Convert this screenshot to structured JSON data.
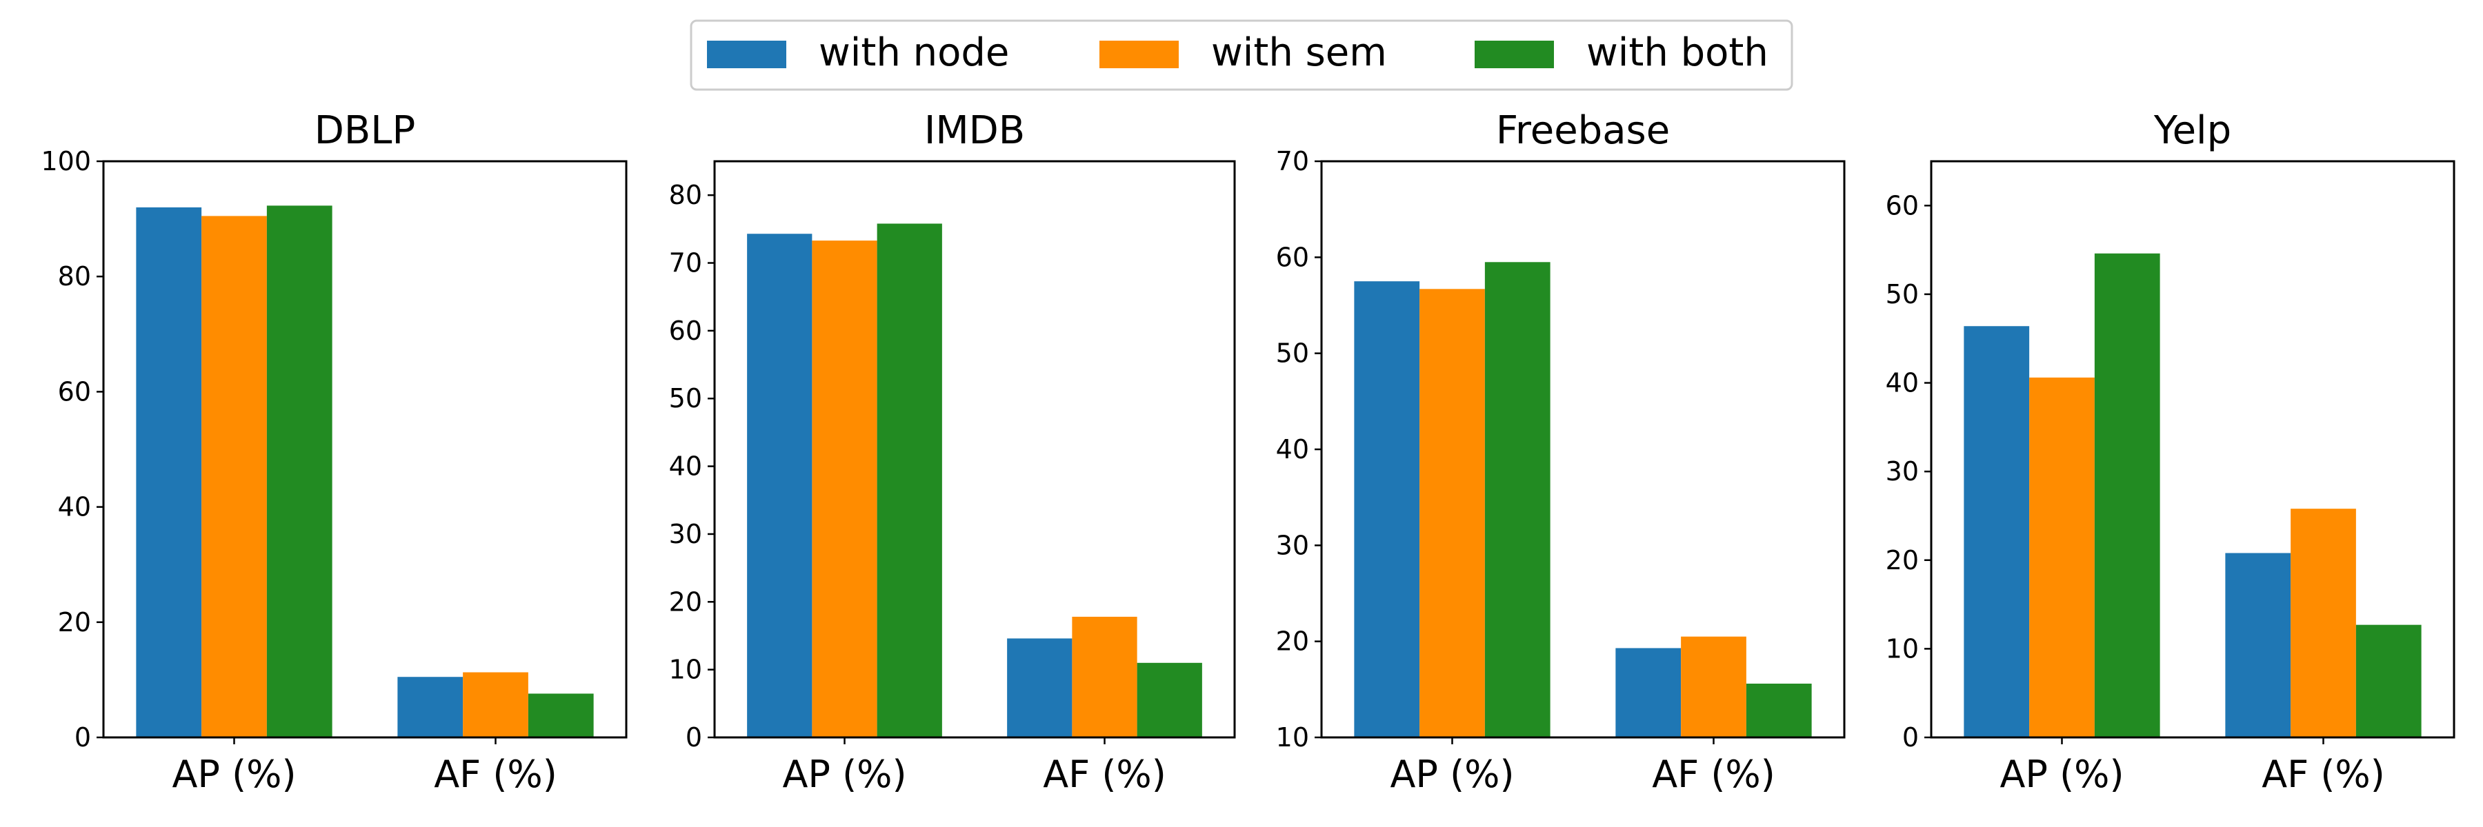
{
  "legend": {
    "entries": [
      {
        "name": "with node",
        "color": "#1f77b4"
      },
      {
        "name": "with sem",
        "color": "#ff8c00"
      },
      {
        "name": "with both",
        "color": "#228b22"
      }
    ]
  },
  "chart_data": [
    {
      "type": "bar",
      "title": "DBLP",
      "categories": [
        "AP (%)",
        "AF (%)"
      ],
      "ylim": [
        0,
        100
      ],
      "yticks": [
        0,
        20,
        40,
        60,
        80,
        100
      ],
      "series": [
        {
          "name": "with node",
          "values": [
            92.0,
            10.5
          ]
        },
        {
          "name": "with sem",
          "values": [
            90.5,
            11.3
          ]
        },
        {
          "name": "with both",
          "values": [
            92.3,
            7.6
          ]
        }
      ]
    },
    {
      "type": "bar",
      "title": "IMDB",
      "categories": [
        "AP (%)",
        "AF (%)"
      ],
      "ylim": [
        0,
        85
      ],
      "yticks": [
        0,
        10,
        20,
        30,
        40,
        50,
        60,
        70,
        80
      ],
      "series": [
        {
          "name": "with node",
          "values": [
            74.3,
            14.6
          ]
        },
        {
          "name": "with sem",
          "values": [
            73.3,
            17.8
          ]
        },
        {
          "name": "with both",
          "values": [
            75.8,
            11.0
          ]
        }
      ]
    },
    {
      "type": "bar",
      "title": "Freebase",
      "categories": [
        "AP (%)",
        "AF (%)"
      ],
      "ylim": [
        10,
        70
      ],
      "yticks": [
        10,
        20,
        30,
        40,
        50,
        60,
        70
      ],
      "series": [
        {
          "name": "with node",
          "values": [
            57.5,
            19.3
          ]
        },
        {
          "name": "with sem",
          "values": [
            56.7,
            20.5
          ]
        },
        {
          "name": "with both",
          "values": [
            59.5,
            15.6
          ]
        }
      ]
    },
    {
      "type": "bar",
      "title": "Yelp",
      "categories": [
        "AP (%)",
        "AF (%)"
      ],
      "ylim": [
        0,
        65
      ],
      "yticks": [
        0,
        10,
        20,
        30,
        40,
        50,
        60
      ],
      "series": [
        {
          "name": "with node",
          "values": [
            46.4,
            20.8
          ]
        },
        {
          "name": "with sem",
          "values": [
            40.6,
            25.8
          ]
        },
        {
          "name": "with both",
          "values": [
            54.6,
            12.7
          ]
        }
      ]
    }
  ]
}
